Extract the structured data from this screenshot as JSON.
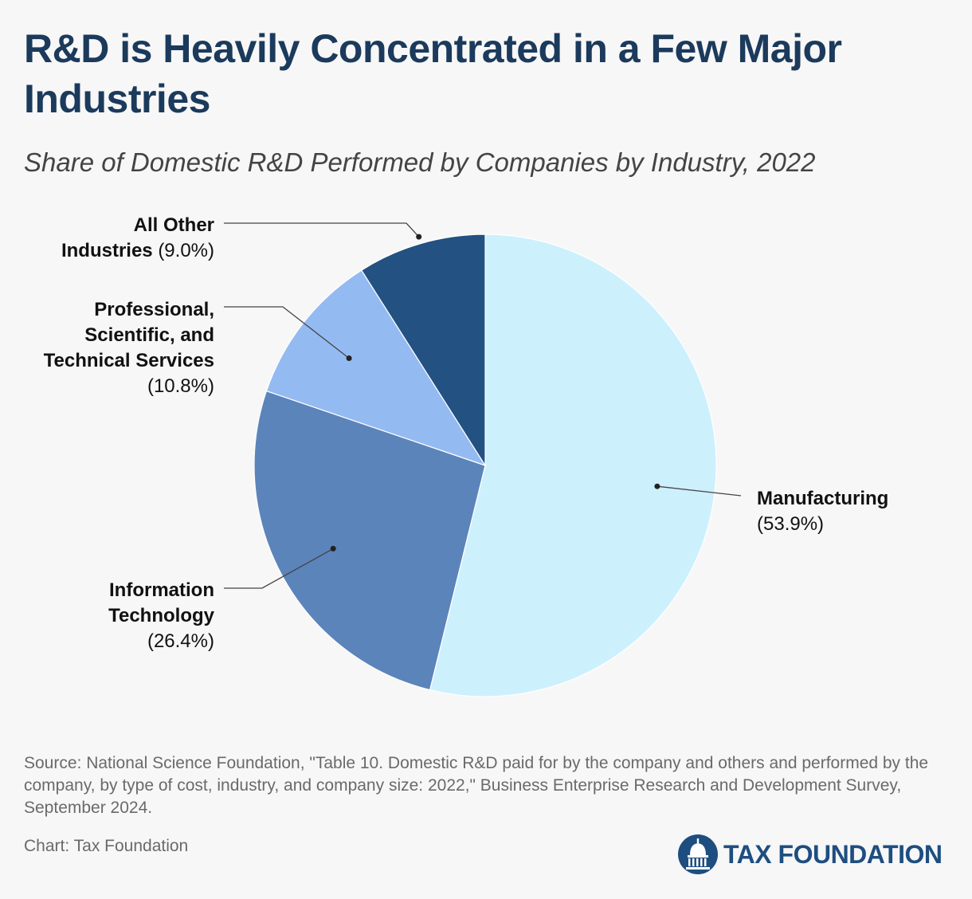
{
  "header": {
    "title": "R&D is Heavily Concentrated in a Few Major Industries",
    "subtitle": "Share of Domestic R&D Performed by Companies by Industry, 2022"
  },
  "chart_data": {
    "type": "pie",
    "categories": [
      "Manufacturing",
      "Information Technology",
      "Professional, Scientific, and Technical Services",
      "All Other Industries"
    ],
    "values": [
      53.9,
      26.4,
      10.8,
      9.0
    ],
    "unit": "%",
    "start_angle": "12 o'clock",
    "direction": "clockwise",
    "slices": [
      {
        "name": "Manufacturing",
        "value": 53.9,
        "value_label": "(53.9%)",
        "color": "#cdf0fd"
      },
      {
        "name": "Information Technology",
        "value": 26.4,
        "value_label": "(26.4%)",
        "color": "#5b84ba"
      },
      {
        "name": "Professional, Scientific, and Technical Services",
        "value": 10.8,
        "value_label": "(10.8%)",
        "color": "#94baf2"
      },
      {
        "name": "All Other Industries",
        "value": 9.0,
        "value_label": "(9.0%)",
        "color": "#235182"
      }
    ],
    "labels": [
      {
        "lines": [
          {
            "name": "Manufacturing"
          },
          {
            "pct": "(53.9%)"
          }
        ]
      },
      {
        "lines": [
          {
            "name": "Information"
          },
          {
            "name": "Technology"
          },
          {
            "pct": "(26.4%)"
          }
        ]
      },
      {
        "lines": [
          {
            "name": "Professional,"
          },
          {
            "name": "Scientific, and"
          },
          {
            "name": "Technical Services"
          },
          {
            "pct": "(10.8%)"
          }
        ]
      },
      {
        "lines": [
          {
            "name": "All Other"
          },
          {
            "name": "Industries ",
            "pct": "(9.0%)"
          }
        ]
      }
    ]
  },
  "footer": {
    "source": "Source: National Science Foundation, \"Table 10. Domestic R&D paid for by the company and others and performed by the company, by type of cost, industry, and company size: 2022,\" Business Enterprise Research and Development Survey, September 2024.",
    "credit": "Chart: Tax Foundation",
    "logo_text": "TAX FOUNDATION",
    "logo_icon": "capitol-dome-icon",
    "logo_color": "#1e4e80"
  }
}
